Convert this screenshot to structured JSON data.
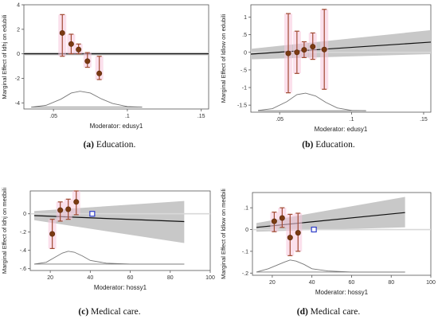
{
  "chart_data": [
    {
      "type": "scatter",
      "panel": "a",
      "caption_label": "(a)",
      "caption_text": "Education.",
      "xlabel": "Moderator: edusy1",
      "ylabel": "Marginal Effect of ldhj on edubili",
      "xlim": [
        0.03,
        0.155
      ],
      "ylim": [
        -4.5,
        4
      ],
      "xticks": [
        {
          "v": 0.05,
          "t": ".05"
        },
        {
          "v": 0.1,
          "t": ".1"
        },
        {
          "v": 0.15,
          "t": ".15"
        }
      ],
      "yticks": [
        {
          "v": -4,
          "t": "-4"
        },
        {
          "v": -2,
          "t": "-2"
        },
        {
          "v": 0,
          "t": "0"
        },
        {
          "v": 2,
          "t": "2"
        },
        {
          "v": 4,
          "t": "4"
        }
      ],
      "line": {
        "x": [
          0.03,
          0.155
        ],
        "y": [
          0,
          0
        ],
        "ci_low": [
          -0.12,
          -0.12
        ],
        "ci_high": [
          0.12,
          0.12
        ]
      },
      "points": [
        {
          "x": 0.056,
          "y": 1.7,
          "lo": -0.2,
          "hi": 3.2
        },
        {
          "x": 0.062,
          "y": 0.8,
          "lo": 0.0,
          "hi": 1.6
        },
        {
          "x": 0.067,
          "y": 0.35,
          "lo": 0.0,
          "hi": 0.8
        },
        {
          "x": 0.073,
          "y": -0.6,
          "lo": -1.1,
          "hi": 0.1
        },
        {
          "x": 0.081,
          "y": -1.6,
          "lo": -2.1,
          "hi": -0.2
        }
      ],
      "density": {
        "x": [
          0.035,
          0.045,
          0.055,
          0.062,
          0.068,
          0.075,
          0.082,
          0.09,
          0.1,
          0.11
        ],
        "y": [
          -4.35,
          -4.2,
          -3.7,
          -3.2,
          -3.05,
          -3.2,
          -3.65,
          -4.05,
          -4.3,
          -4.35
        ],
        "baseline": -4.35
      }
    },
    {
      "type": "scatter",
      "panel": "b",
      "caption_label": "(b)",
      "caption_text": "Education.",
      "xlabel": "Moderator: edusy1",
      "ylabel": "Marginal Effect of ldlow on edubili",
      "xlim": [
        0.03,
        0.155
      ],
      "ylim": [
        -1.7,
        1.35
      ],
      "xticks": [
        {
          "v": 0.05,
          "t": ".05"
        },
        {
          "v": 0.1,
          "t": ".1"
        },
        {
          "v": 0.15,
          "t": ".15"
        }
      ],
      "yticks": [
        {
          "v": -1.5,
          "t": "-1.5"
        },
        {
          "v": -1,
          "t": "-1"
        },
        {
          "v": -0.5,
          "t": "-.5"
        },
        {
          "v": 0,
          "t": "0"
        },
        {
          "v": 0.5,
          "t": ".5"
        },
        {
          "v": 1,
          "t": "1"
        }
      ],
      "line": {
        "x": [
          0.03,
          0.155
        ],
        "y": [
          -0.05,
          0.29
        ],
        "ci_low": [
          -0.2,
          -0.05
        ],
        "ci_high": [
          0.1,
          0.63
        ]
      },
      "points": [
        {
          "x": 0.056,
          "y": -0.03,
          "lo": -1.15,
          "hi": 1.1
        },
        {
          "x": 0.062,
          "y": 0.0,
          "lo": -0.6,
          "hi": 0.6
        },
        {
          "x": 0.067,
          "y": 0.07,
          "lo": -0.15,
          "hi": 0.3
        },
        {
          "x": 0.073,
          "y": 0.16,
          "lo": -0.2,
          "hi": 0.55
        },
        {
          "x": 0.081,
          "y": 0.08,
          "lo": -1.05,
          "hi": 1.22
        }
      ],
      "density": {
        "x": [
          0.035,
          0.045,
          0.055,
          0.062,
          0.068,
          0.075,
          0.082,
          0.09,
          0.1,
          0.11
        ],
        "y": [
          -1.65,
          -1.6,
          -1.4,
          -1.2,
          -1.16,
          -1.24,
          -1.42,
          -1.58,
          -1.65,
          -1.66
        ],
        "baseline": -1.66
      }
    },
    {
      "type": "scatter",
      "panel": "c",
      "caption_label": "(c)",
      "caption_text": "Medical care.",
      "xlabel": "Moderator: hossy1",
      "ylabel": "Marginal Effect of ldhj on medbili",
      "xlim": [
        10,
        100
      ],
      "ylim": [
        -0.62,
        0.25
      ],
      "xticks": [
        {
          "v": 20,
          "t": "20"
        },
        {
          "v": 40,
          "t": "40"
        },
        {
          "v": 60,
          "t": "60"
        },
        {
          "v": 80,
          "t": "80"
        },
        {
          "v": 100,
          "t": "100"
        }
      ],
      "yticks": [
        {
          "v": -0.6,
          "t": "-.6"
        },
        {
          "v": -0.4,
          "t": "-.4"
        },
        {
          "v": -0.2,
          "t": "-.2"
        },
        {
          "v": 0,
          "t": "0"
        }
      ],
      "line": {
        "x": [
          12,
          87
        ],
        "y": [
          -0.02,
          -0.085
        ],
        "ci_low": [
          -0.07,
          -0.32
        ],
        "ci_high": [
          0.03,
          0.14
        ]
      },
      "points": [
        {
          "x": 21,
          "y": -0.22,
          "lo": -0.38,
          "hi": -0.06
        },
        {
          "x": 25,
          "y": 0.04,
          "lo": -0.08,
          "hi": 0.13
        },
        {
          "x": 29,
          "y": 0.05,
          "lo": -0.06,
          "hi": 0.16
        },
        {
          "x": 33,
          "y": 0.13,
          "lo": -0.01,
          "hi": 0.25
        }
      ],
      "open_marker": {
        "x": 41,
        "y": 0.0
      },
      "density": {
        "x": [
          12,
          18,
          22,
          26,
          29,
          32,
          36,
          40,
          48,
          60,
          87
        ],
        "y": [
          -0.55,
          -0.53,
          -0.48,
          -0.43,
          -0.41,
          -0.42,
          -0.46,
          -0.51,
          -0.54,
          -0.55,
          -0.55
        ],
        "baseline": -0.55
      }
    },
    {
      "type": "scatter",
      "panel": "d",
      "caption_label": "(d)",
      "caption_text": "Medical care.",
      "xlabel": "Moderator: hossy1",
      "ylabel": "Marginal Effect of ldlow on medbili",
      "xlim": [
        10,
        100
      ],
      "ylim": [
        -0.21,
        0.17
      ],
      "xticks": [
        {
          "v": 20,
          "t": "20"
        },
        {
          "v": 40,
          "t": "40"
        },
        {
          "v": 60,
          "t": "60"
        },
        {
          "v": 80,
          "t": "80"
        },
        {
          "v": 100,
          "t": "100"
        }
      ],
      "yticks": [
        {
          "v": -0.2,
          "t": "-.2"
        },
        {
          "v": -0.1,
          "t": "-.1"
        },
        {
          "v": 0,
          "t": "0"
        },
        {
          "v": 0.1,
          "t": ".1"
        }
      ],
      "line": {
        "x": [
          12,
          87
        ],
        "y": [
          0.01,
          0.078
        ],
        "ci_low": [
          -0.01,
          0.01
        ],
        "ci_high": [
          0.03,
          0.15
        ]
      },
      "points": [
        {
          "x": 21,
          "y": 0.038,
          "lo": -0.01,
          "hi": 0.08
        },
        {
          "x": 25,
          "y": 0.053,
          "lo": 0.01,
          "hi": 0.1
        },
        {
          "x": 29,
          "y": -0.037,
          "lo": -0.12,
          "hi": 0.07
        },
        {
          "x": 33,
          "y": -0.015,
          "lo": -0.1,
          "hi": 0.075
        }
      ],
      "open_marker": {
        "x": 41,
        "y": 0.0
      },
      "density": {
        "x": [
          12,
          18,
          22,
          26,
          29,
          32,
          36,
          40,
          48,
          60,
          87
        ],
        "y": [
          -0.195,
          -0.18,
          -0.165,
          -0.15,
          -0.14,
          -0.145,
          -0.16,
          -0.18,
          -0.19,
          -0.195,
          -0.195
        ],
        "baseline": -0.195
      }
    }
  ]
}
